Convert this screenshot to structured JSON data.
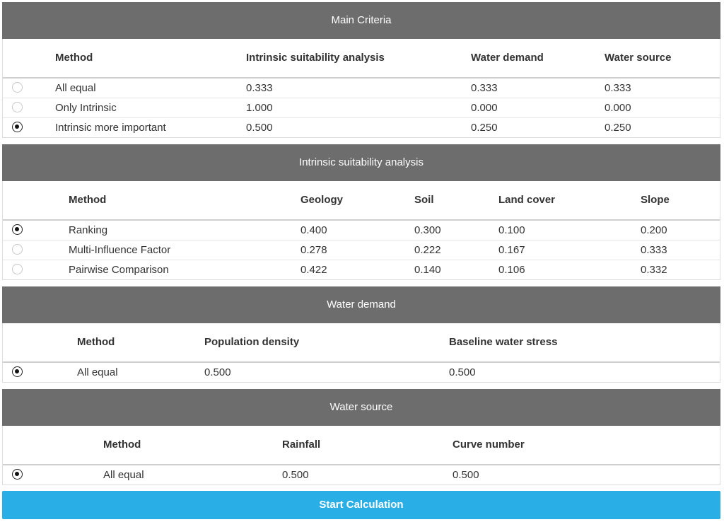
{
  "main": {
    "title": "Main Criteria",
    "headers": [
      "Method",
      "Intrinsic suitability analysis",
      "Water demand",
      "Water source"
    ],
    "rows": [
      {
        "selected": false,
        "cells": [
          "All equal",
          "0.333",
          "0.333",
          "0.333"
        ]
      },
      {
        "selected": false,
        "cells": [
          "Only Intrinsic",
          "1.000",
          "0.000",
          "0.000"
        ]
      },
      {
        "selected": true,
        "cells": [
          "Intrinsic more important",
          "0.500",
          "0.250",
          "0.250"
        ]
      }
    ]
  },
  "intrinsic": {
    "title": "Intrinsic suitability analysis",
    "headers": [
      "Method",
      "Geology",
      "Soil",
      "Land cover",
      "Slope"
    ],
    "rows": [
      {
        "selected": true,
        "cells": [
          "Ranking",
          "0.400",
          "0.300",
          "0.100",
          "0.200"
        ]
      },
      {
        "selected": false,
        "cells": [
          "Multi-Influence Factor",
          "0.278",
          "0.222",
          "0.167",
          "0.333"
        ]
      },
      {
        "selected": false,
        "cells": [
          "Pairwise Comparison",
          "0.422",
          "0.140",
          "0.106",
          "0.332"
        ]
      }
    ]
  },
  "demand": {
    "title": "Water demand",
    "headers": [
      "Method",
      "Population density",
      "Baseline water stress"
    ],
    "rows": [
      {
        "selected": true,
        "cells": [
          "All equal",
          "0.500",
          "0.500"
        ]
      }
    ]
  },
  "source": {
    "title": "Water source",
    "headers": [
      "Method",
      "Rainfall",
      "Curve number"
    ],
    "rows": [
      {
        "selected": true,
        "cells": [
          "All equal",
          "0.500",
          "0.500"
        ]
      }
    ]
  },
  "actions": {
    "start_label": "Start Calculation"
  }
}
